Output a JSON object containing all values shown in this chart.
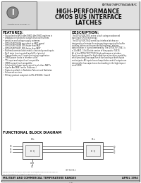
{
  "bg_color": "#ffffff",
  "border_color": "#555555",
  "company": "Integrated Device Technology, Inc.",
  "part_number": "IDT54/74FCT841A/B/C",
  "title_line1": "HIGH-PERFORMANCE",
  "title_line2": "CMOS BUS INTERFACE",
  "title_line3": "LATCHES",
  "features_title": "FEATURES:",
  "features": [
    "Equivalent to AMD's Am29841-/Am29841 registers in",
    "propagation speed and output drive over full tem-",
    "peratures and voltage supply extremes",
    "IDT54/74FCT841A equivalent to FAST speed",
    "IDT54/74FCT841B 33% faster than FAST",
    "IDT54/74FCT841C 50% faster than FAST",
    "Buffered common latch enable, clear and preset inputs",
    "No-X state (non-inverted) and biDrv (priority)",
    "Clamp diodes on all inputs for ringing suppression",
    "CMOS-power levels in interface units",
    "TTL input and output level compatible",
    "CMOS-output level compatible",
    "Substantially lower input current levels than FAST's",
    "bipolar Am29841 series (3uA max.)",
    "Product available in Radiation Tolerant and Radiation",
    "Enhanced versions",
    "Military product compliant to MIL-STD-883, Class B"
  ],
  "desc_title": "DESCRIPTION:",
  "desc_lines": [
    "The IDT54/74FCT800 series is built using an advanced",
    "dual input CMOS technology.",
    "The IDT54/74FCT840 series bus interface latches are",
    "designed to eliminate the extra packages required to buffer",
    "existing latches and to provide bidirectional, address",
    "data isolation in buses commonality. The IDT54/74FCT841 is",
    "a 10-d/841, 1 8x10 wide version of the popular 74374.",
    "All of the IDT54/74FCT 1000 high-performance interface",
    "family are designed for high-capacitance bus-drive capability,",
    "while providing low-capacitance bus loading at both inputs",
    "and outputs. All inputs have clamp diodes and all outputs are",
    "designed for low capacitance bus loading in the high-impact",
    "since 2009."
  ],
  "fbd_title": "FUNCTIONAL BLOCK DIAGRAM",
  "footer_left": "MILITARY AND COMMERCIAL TEMPERATURE RANGES",
  "footer_right": "APRIL 1994",
  "footer_center": "1.28",
  "fig_note": "IDT 54/74-1"
}
